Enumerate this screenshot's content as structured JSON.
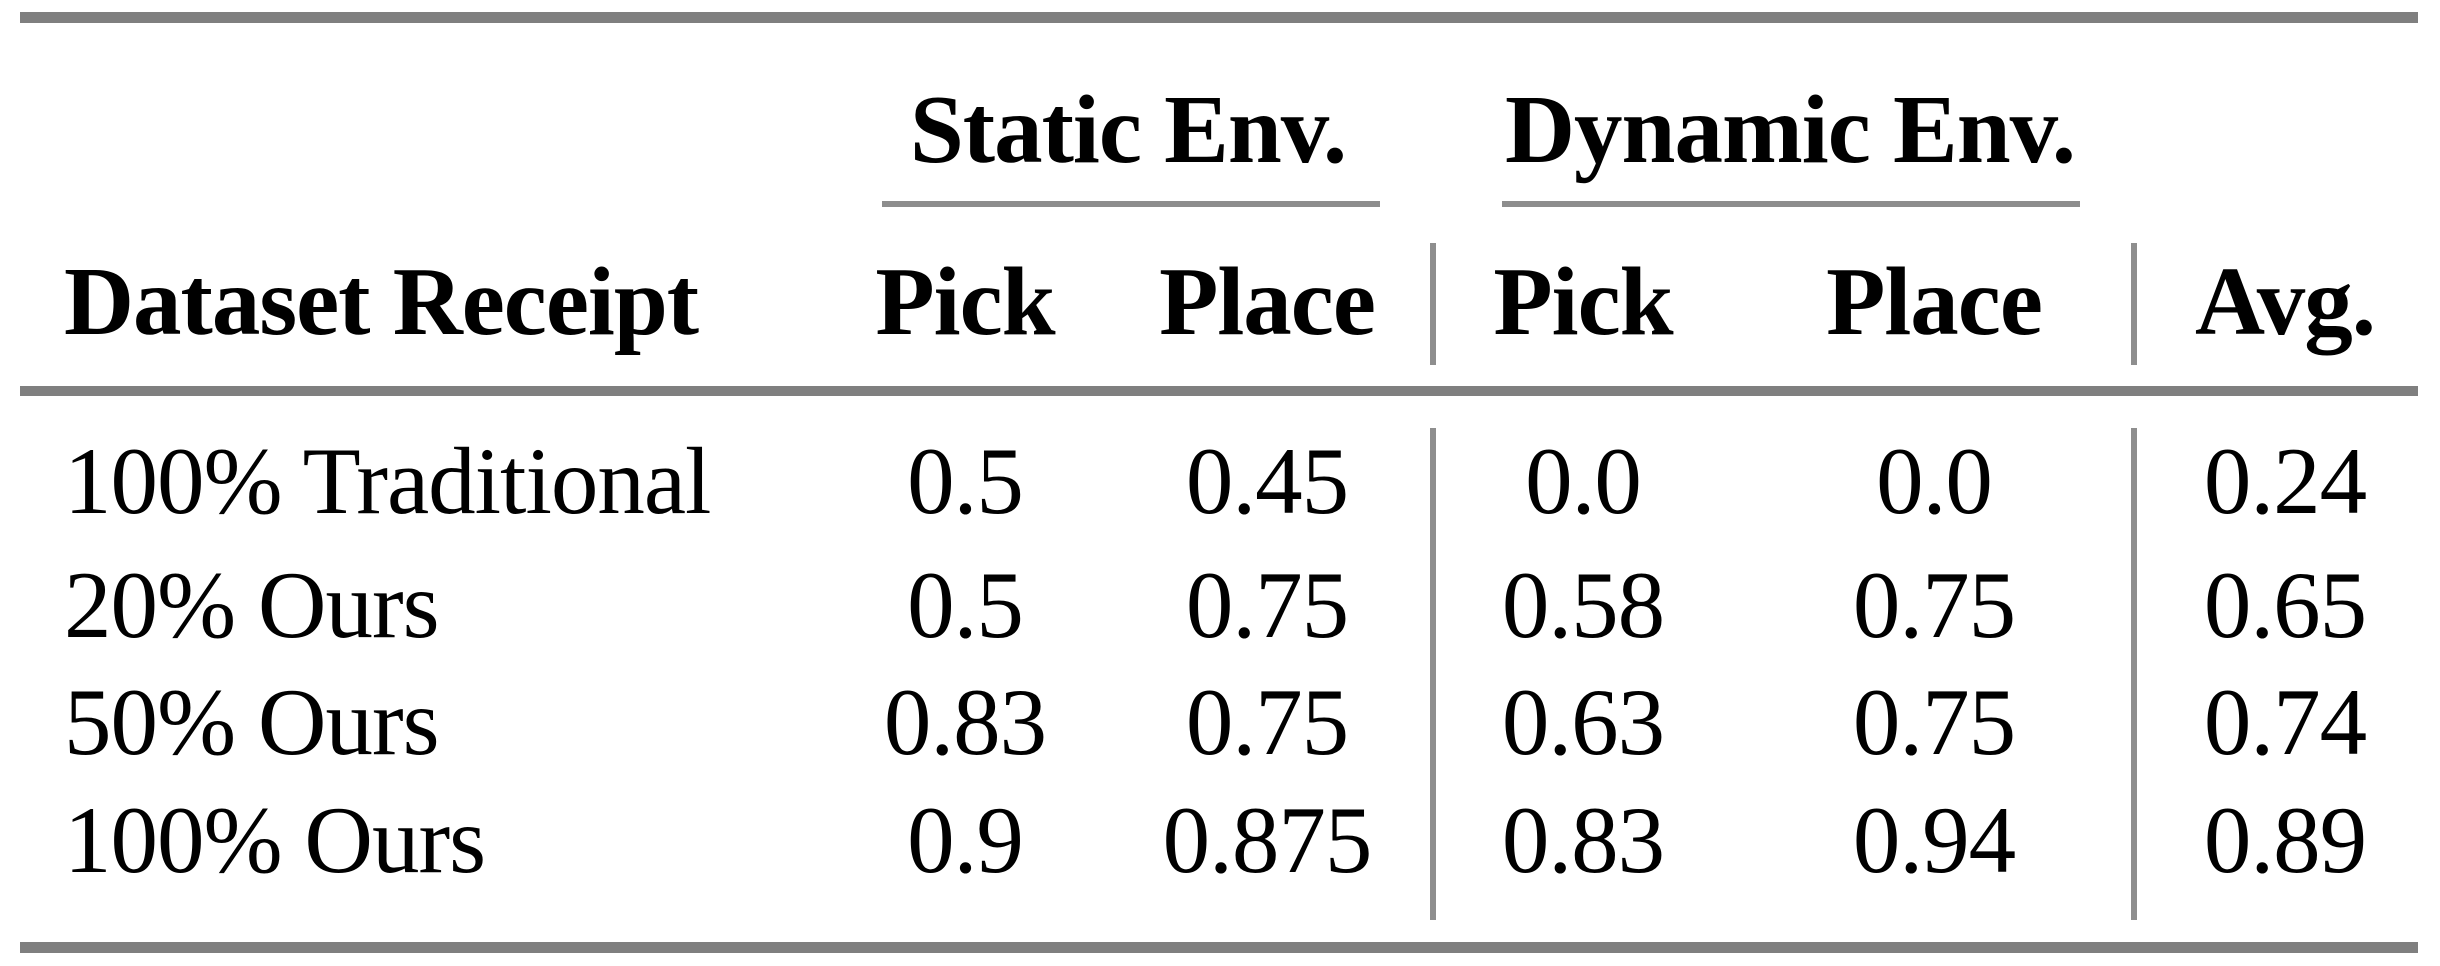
{
  "table": {
    "group_headers": [
      {
        "label": "Static Env."
      },
      {
        "label": "Dynamic Env."
      }
    ],
    "columns": [
      {
        "label": "Dataset Receipt"
      },
      {
        "label": "Pick"
      },
      {
        "label": "Place"
      },
      {
        "label": "Pick"
      },
      {
        "label": "Place"
      },
      {
        "label": "Avg."
      }
    ],
    "rows": [
      {
        "label": "100% Traditional",
        "static_pick": "0.5",
        "static_place": "0.45",
        "dynamic_pick": "0.0",
        "dynamic_place": "0.0",
        "avg": "0.24"
      },
      {
        "label": "20% Ours",
        "static_pick": "0.5",
        "static_place": "0.75",
        "dynamic_pick": "0.58",
        "dynamic_place": "0.75",
        "avg": "0.65"
      },
      {
        "label": "50% Ours",
        "static_pick": "0.83",
        "static_place": "0.75",
        "dynamic_pick": "0.63",
        "dynamic_place": "0.75",
        "avg": "0.74"
      },
      {
        "label": "100% Ours",
        "static_pick": "0.9",
        "static_place": "0.875",
        "dynamic_pick": "0.83",
        "dynamic_place": "0.94",
        "avg": "0.89"
      }
    ]
  },
  "colors": {
    "text": "#000000",
    "rule_thick": "#7f7f7f",
    "rule_thin": "#8d8d8d",
    "background": "#ffffff"
  }
}
